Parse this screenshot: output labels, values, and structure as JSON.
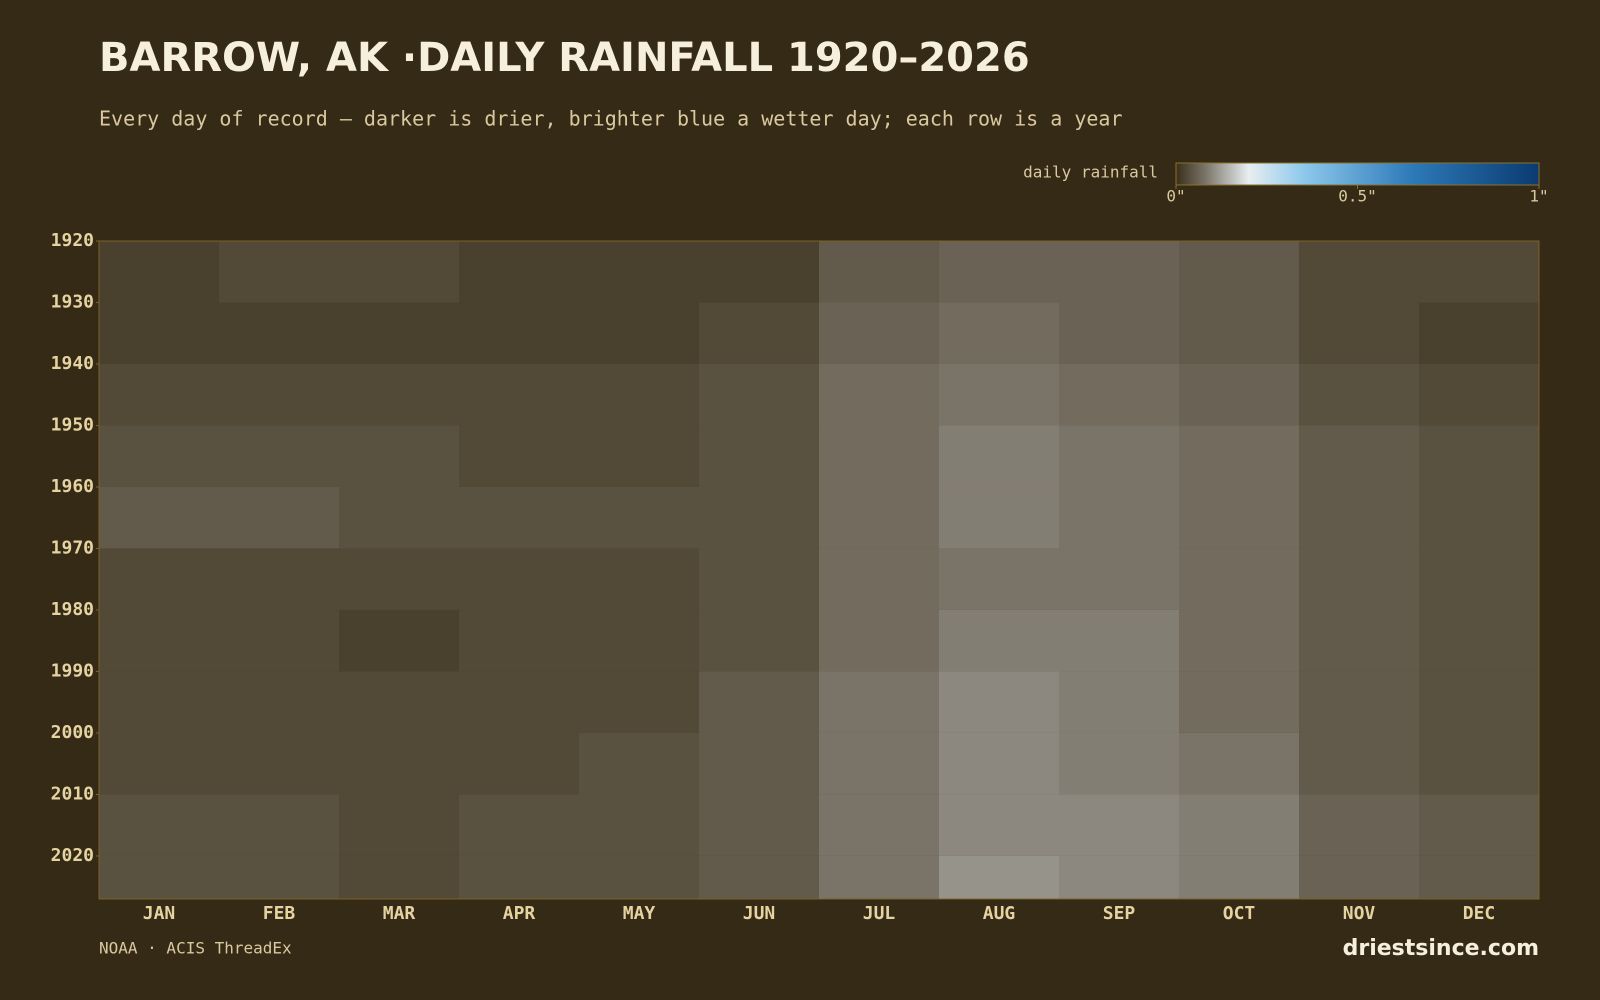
{
  "chart_data": {
    "type": "heatmap",
    "title": "BARROW, AK ·DAILY RAINFALL 1920–2026",
    "subtitle": "Every day of record — darker is drier, brighter blue a wetter day; each row is a year",
    "colorbar_label": "daily rainfall",
    "colorbar_lim": [
      0,
      1
    ],
    "colorbar_ticks": [
      {
        "value": 0,
        "label": "0\""
      },
      {
        "value": 0.5,
        "label": "0.5\""
      },
      {
        "value": 1,
        "label": "1\""
      }
    ],
    "categories": [
      "JAN",
      "FEB",
      "MAR",
      "APR",
      "MAY",
      "JUN",
      "JUL",
      "AUG",
      "SEP",
      "OCT",
      "NOV",
      "DEC"
    ],
    "y": [
      1920,
      1930,
      1940,
      1950,
      1960,
      1970,
      1980,
      1990,
      2000,
      2010,
      2020
    ],
    "ylim": [
      1920,
      2027
    ],
    "yticks": [
      1920,
      1930,
      1940,
      1950,
      1960,
      1970,
      1980,
      1990,
      2000,
      2010,
      2020
    ],
    "values": [
      [
        0.02,
        0.03,
        0.03,
        0.02,
        0.02,
        0.02,
        0.05,
        0.06,
        0.06,
        0.05,
        0.03,
        0.03
      ],
      [
        0.02,
        0.02,
        0.02,
        0.02,
        0.02,
        0.03,
        0.06,
        0.07,
        0.06,
        0.05,
        0.03,
        0.02
      ],
      [
        0.03,
        0.03,
        0.03,
        0.03,
        0.03,
        0.04,
        0.07,
        0.08,
        0.07,
        0.06,
        0.04,
        0.03
      ],
      [
        0.04,
        0.04,
        0.04,
        0.03,
        0.03,
        0.04,
        0.07,
        0.09,
        0.08,
        0.07,
        0.05,
        0.04
      ],
      [
        0.05,
        0.05,
        0.04,
        0.04,
        0.04,
        0.04,
        0.07,
        0.09,
        0.08,
        0.07,
        0.05,
        0.04
      ],
      [
        0.03,
        0.03,
        0.03,
        0.03,
        0.03,
        0.04,
        0.07,
        0.08,
        0.08,
        0.07,
        0.05,
        0.04
      ],
      [
        0.03,
        0.03,
        0.02,
        0.03,
        0.03,
        0.04,
        0.07,
        0.09,
        0.09,
        0.07,
        0.05,
        0.04
      ],
      [
        0.03,
        0.03,
        0.03,
        0.03,
        0.03,
        0.05,
        0.08,
        0.1,
        0.09,
        0.07,
        0.05,
        0.04
      ],
      [
        0.03,
        0.03,
        0.03,
        0.03,
        0.04,
        0.05,
        0.08,
        0.1,
        0.09,
        0.08,
        0.05,
        0.04
      ],
      [
        0.04,
        0.04,
        0.03,
        0.04,
        0.04,
        0.05,
        0.08,
        0.1,
        0.1,
        0.09,
        0.06,
        0.05
      ],
      [
        0.04,
        0.04,
        0.03,
        0.04,
        0.04,
        0.05,
        0.08,
        0.11,
        0.1,
        0.09,
        0.06,
        0.05
      ]
    ],
    "source": "NOAA · ACIS ThreadEx",
    "brand": "driestsince.com"
  }
}
